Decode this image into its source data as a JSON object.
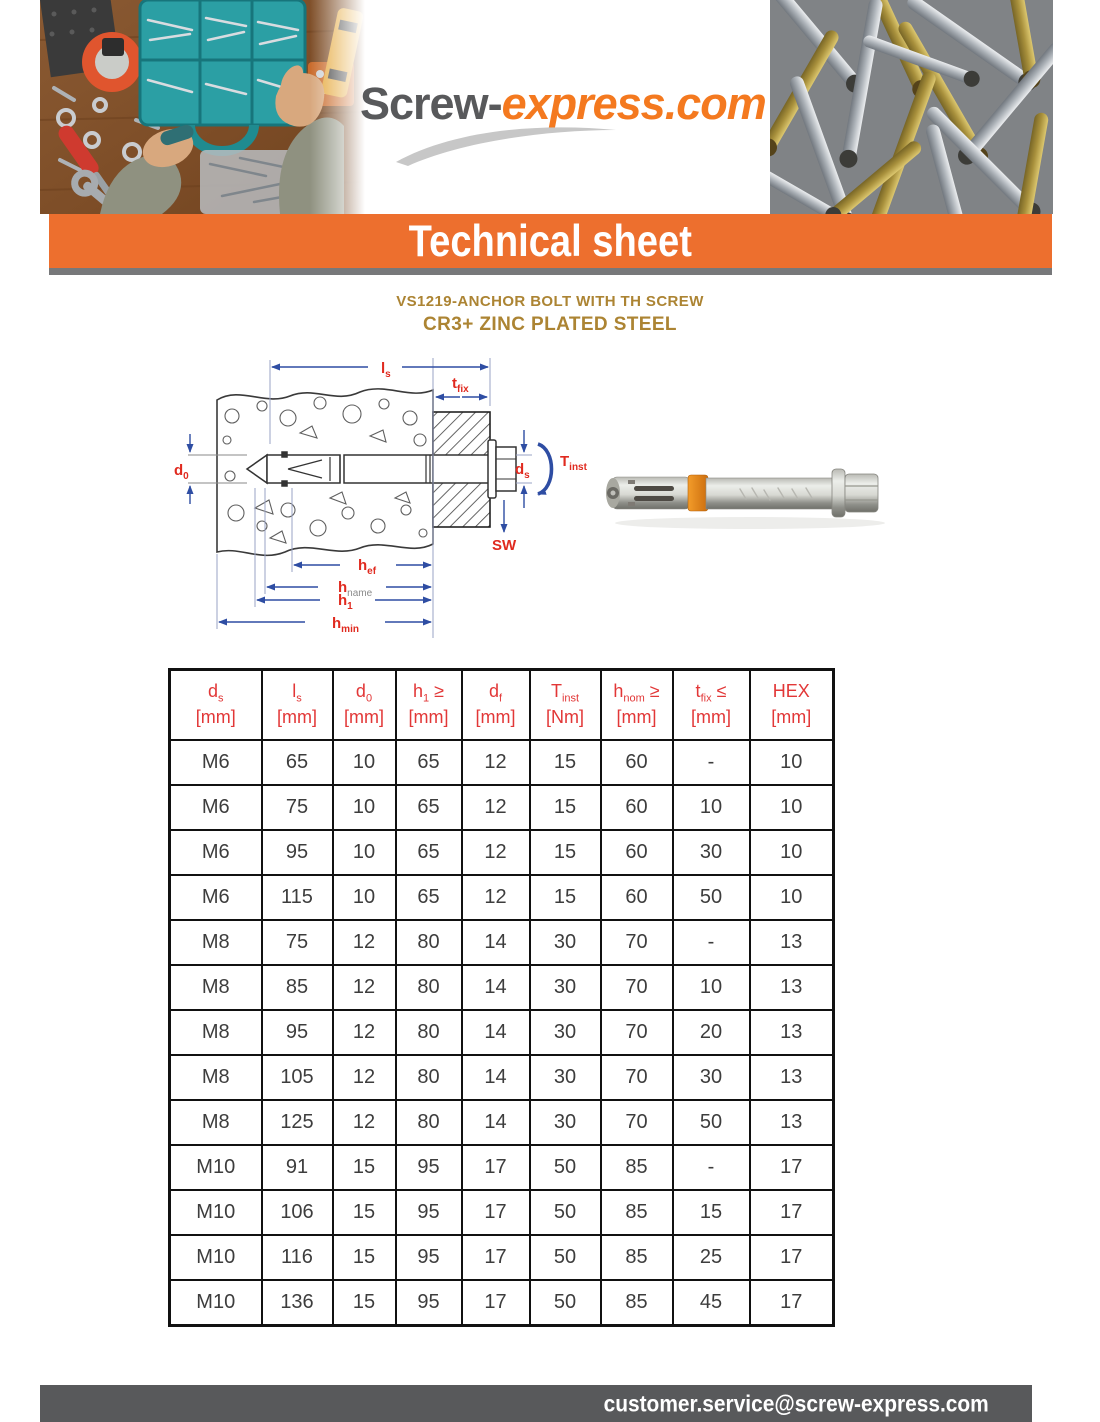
{
  "header": {
    "logo_part1": "Screw-",
    "logo_part2": "express.com",
    "banner_title": "Technical sheet"
  },
  "product": {
    "title_line1": "VS1219-ANCHOR BOLT WITH TH SCREW",
    "title_line2": "CR3+ ZINC PLATED STEEL"
  },
  "diagram": {
    "labels": {
      "ls": {
        "main": "l",
        "sub": "s"
      },
      "tfix": {
        "main": "t",
        "sub": "fix"
      },
      "d0": {
        "main": "d",
        "sub": "0"
      },
      "ds": {
        "main": "d",
        "sub": "s"
      },
      "tinst": {
        "main": "T",
        "sub": "inst"
      },
      "sw": {
        "main": "SW",
        "sub": ""
      },
      "hef": {
        "main": "h",
        "sub": "ef"
      },
      "hname": {
        "main": "h",
        "sub": "name"
      },
      "h1": {
        "main": "h",
        "sub": "1"
      },
      "hmin": {
        "main": "h",
        "sub": "min"
      }
    }
  },
  "table": {
    "headers": [
      {
        "main": "d",
        "sub": "s",
        "suffix": "",
        "unit": "[mm]"
      },
      {
        "main": "l",
        "sub": "s",
        "suffix": "",
        "unit": "[mm]"
      },
      {
        "main": "d",
        "sub": "0",
        "suffix": "",
        "unit": "[mm]"
      },
      {
        "main": "h",
        "sub": "1",
        "suffix": " ≥",
        "unit": "[mm]"
      },
      {
        "main": "d",
        "sub": "f",
        "suffix": "",
        "unit": "[mm]"
      },
      {
        "main": "T",
        "sub": "inst",
        "suffix": "",
        "unit": "[Nm]"
      },
      {
        "main": "h",
        "sub": "nom",
        "suffix": " ≥",
        "unit": "[mm]"
      },
      {
        "main": "t",
        "sub": "fix",
        "suffix": " ≤",
        "unit": "[mm]"
      },
      {
        "main": "HEX",
        "sub": "",
        "suffix": "",
        "unit": "[mm]"
      }
    ],
    "rows": [
      [
        "M6",
        "65",
        "10",
        "65",
        "12",
        "15",
        "60",
        "-",
        "10"
      ],
      [
        "M6",
        "75",
        "10",
        "65",
        "12",
        "15",
        "60",
        "10",
        "10"
      ],
      [
        "M6",
        "95",
        "10",
        "65",
        "12",
        "15",
        "60",
        "30",
        "10"
      ],
      [
        "M6",
        "115",
        "10",
        "65",
        "12",
        "15",
        "60",
        "50",
        "10"
      ],
      [
        "M8",
        "75",
        "12",
        "80",
        "14",
        "30",
        "70",
        "-",
        "13"
      ],
      [
        "M8",
        "85",
        "12",
        "80",
        "14",
        "30",
        "70",
        "10",
        "13"
      ],
      [
        "M8",
        "95",
        "12",
        "80",
        "14",
        "30",
        "70",
        "20",
        "13"
      ],
      [
        "M8",
        "105",
        "12",
        "80",
        "14",
        "30",
        "70",
        "30",
        "13"
      ],
      [
        "M8",
        "125",
        "12",
        "80",
        "14",
        "30",
        "70",
        "50",
        "13"
      ],
      [
        "M10",
        "91",
        "15",
        "95",
        "17",
        "50",
        "85",
        "-",
        "17"
      ],
      [
        "M10",
        "106",
        "15",
        "95",
        "17",
        "50",
        "85",
        "15",
        "17"
      ],
      [
        "M10",
        "116",
        "15",
        "95",
        "17",
        "50",
        "85",
        "25",
        "17"
      ],
      [
        "M10",
        "136",
        "15",
        "95",
        "17",
        "50",
        "85",
        "45",
        "17"
      ]
    ]
  },
  "footer": {
    "email": "customer.service@screw-express.com"
  },
  "colors": {
    "accent_orange": "#ED6F2E",
    "label_red": "#E02A1F",
    "table_header_red": "#E23737",
    "title_gold": "#AC8433",
    "dim_blue": "#2E4DA3",
    "footer_gray": "#58595B"
  }
}
